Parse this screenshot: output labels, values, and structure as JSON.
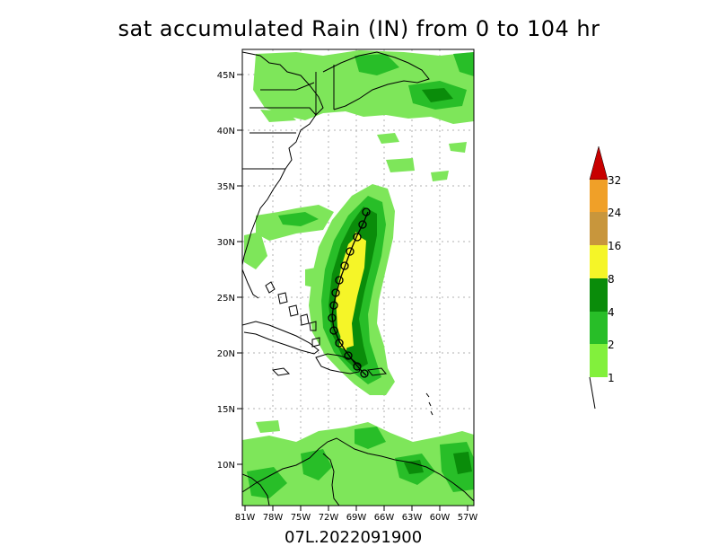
{
  "title": "sat accumulated Rain (IN) from 0 to 104 hr",
  "storm_id": "07L.2022091900",
  "axes": {
    "lat_labels": [
      "45N",
      "40N",
      "35N",
      "30N",
      "25N",
      "20N",
      "15N",
      "10N"
    ],
    "lon_labels": [
      "81W",
      "78W",
      "75W",
      "72W",
      "69W",
      "66W",
      "63W",
      "60W",
      "57W"
    ]
  },
  "colorbar": {
    "labels": [
      "32",
      "24",
      "16",
      "8",
      "4",
      "2",
      "1"
    ],
    "colors": {
      "over": "#c80000",
      "c24_32": "#f0a028",
      "c16_24": "#c8963c",
      "c8_16": "#f5f528",
      "c4_8": "#0a8c0a",
      "c2_4": "#28be28",
      "c1_2": "#82f03c"
    }
  },
  "colors": {
    "light_green": "#7ee65a",
    "mid_green": "#28be28",
    "dark_green": "#0a8c0a",
    "yellow": "#f5f528"
  }
}
